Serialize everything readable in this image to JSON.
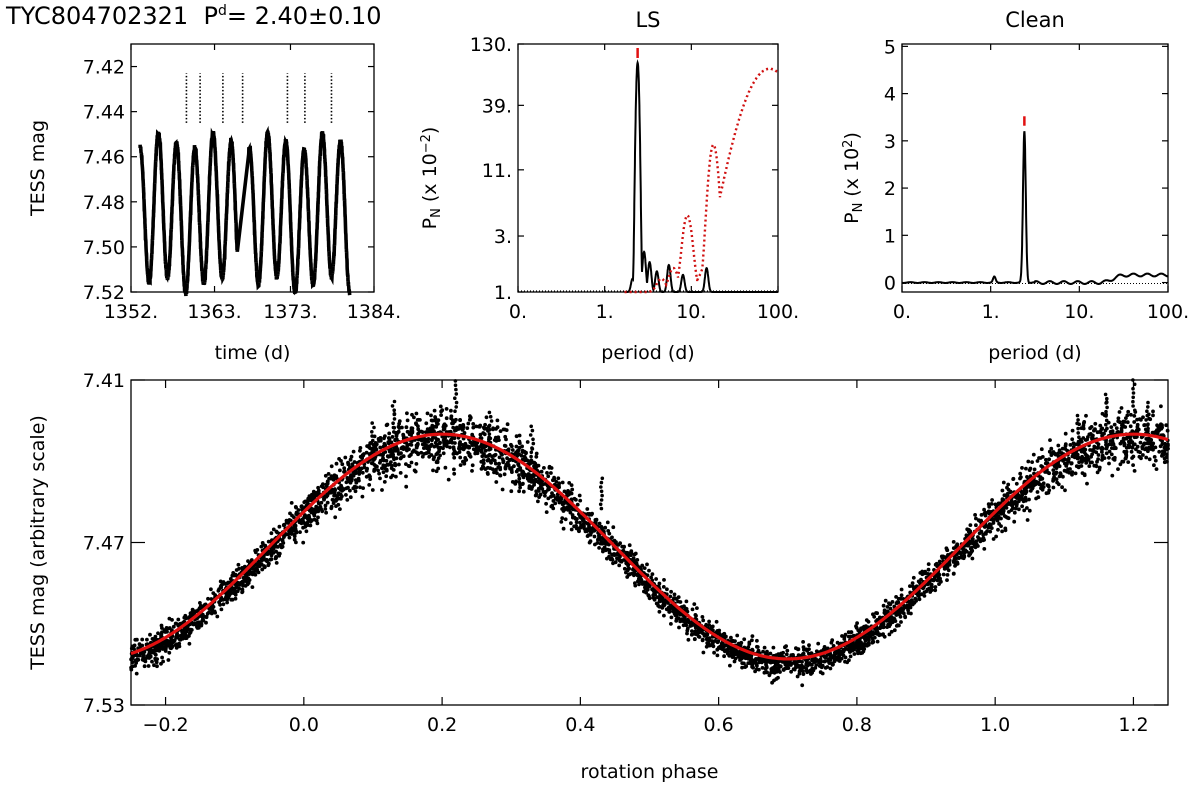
{
  "header": {
    "star": "TYC804702321",
    "period_symbol": "P",
    "period_sup": "d",
    "period_value": "= 2.40±0.10"
  },
  "chart_data": [
    {
      "type": "scatter",
      "title": "",
      "xlabel": "time (d)",
      "ylabel": "TESS mag",
      "xlim": [
        1352,
        1384
      ],
      "ylim": [
        7.52,
        7.41
      ],
      "y_inverted": true,
      "xticks": [
        "1352.",
        "1363.",
        "1373.",
        "1384."
      ],
      "yticks": [
        "7.42",
        "7.44",
        "7.46",
        "7.48",
        "7.50",
        "7.52"
      ],
      "x_start": 1353.2,
      "x_gap": [
        1366.0,
        1367.5
      ],
      "x_end": 1380.8,
      "period_days": 2.4,
      "center_mag": 7.485,
      "amplitude_mag": 0.032,
      "flares": [
        1359.3,
        1361.1,
        1364.1,
        1366.7,
        1372.6,
        1374.9,
        1378.4
      ]
    },
    {
      "type": "line",
      "title": "LS",
      "xlabel": "period (d)",
      "ylabel": "P_N (x 10^-2)",
      "ylabel_main": "P",
      "ylabel_sub": "N",
      "ylabel_tail": "(x 10",
      "ylabel_sup": "−2",
      "ylabel_close": ")",
      "x_scale": "log",
      "xlim": [
        0.1,
        100
      ],
      "xticks": [
        "0.",
        "1.",
        "10.",
        "100."
      ],
      "y_scale": "log",
      "ylim": [
        1,
        130
      ],
      "yticks": [
        "1.",
        "3.",
        "11.",
        "39.",
        "130."
      ],
      "peak_period": 2.4,
      "series": [
        {
          "name": "",
          "color": "#000000",
          "style": "solid",
          "peaks": [
            {
              "period": 2.1,
              "power": 1.3
            },
            {
              "period": 2.4,
              "power": 90
            },
            {
              "period": 2.85,
              "power": 2.2
            },
            {
              "period": 3.3,
              "power": 1.8
            },
            {
              "period": 4.0,
              "power": 1.5
            },
            {
              "period": 5.5,
              "power": 1.7
            },
            {
              "period": 8.0,
              "power": 1.4
            },
            {
              "period": 15.0,
              "power": 1.6
            }
          ]
        },
        {
          "name": "",
          "color": "#d01010",
          "style": "dotted",
          "peaks": [
            {
              "period": 4.5,
              "power": 1.3
            },
            {
              "period": 6.2,
              "power": 1.6
            },
            {
              "period": 9.0,
              "power": 4.5
            },
            {
              "period": 18.0,
              "power": 18
            },
            {
              "period": 80.0,
              "power": 80
            }
          ]
        }
      ]
    },
    {
      "type": "line",
      "title": "Clean",
      "xlabel": "period (d)",
      "ylabel": "P_N (x 10^2)",
      "ylabel_main": "P",
      "ylabel_sub": "N",
      "ylabel_tail": "(x 10",
      "ylabel_sup": "2",
      "ylabel_close": ")",
      "x_scale": "log",
      "xlim": [
        0.1,
        100
      ],
      "xticks": [
        "0.",
        "1.",
        "10.",
        "100."
      ],
      "ylim": [
        -0.2,
        5.05
      ],
      "yticks": [
        "0",
        "1",
        "2",
        "3",
        "4",
        "5"
      ],
      "peak_period": 2.4,
      "peak_power": 3.2,
      "marker_power": 3.4
    },
    {
      "type": "scatter",
      "title": "",
      "xlabel": "rotation phase",
      "ylabel": "TESS mag (arbitrary scale)",
      "xlim": [
        -0.25,
        1.25
      ],
      "ylim": [
        7.53,
        7.41
      ],
      "y_inverted": true,
      "xticks": [
        "−0.2",
        "0.0",
        "0.2",
        "0.4",
        "0.6",
        "0.8",
        "1.0",
        "1.2"
      ],
      "yticks": [
        "7.41",
        "7.47",
        "7.53"
      ],
      "fit": {
        "color": "#e01010",
        "mean": 7.4715,
        "amplitude": 0.0415,
        "max_phase": 0.2
      }
    }
  ]
}
